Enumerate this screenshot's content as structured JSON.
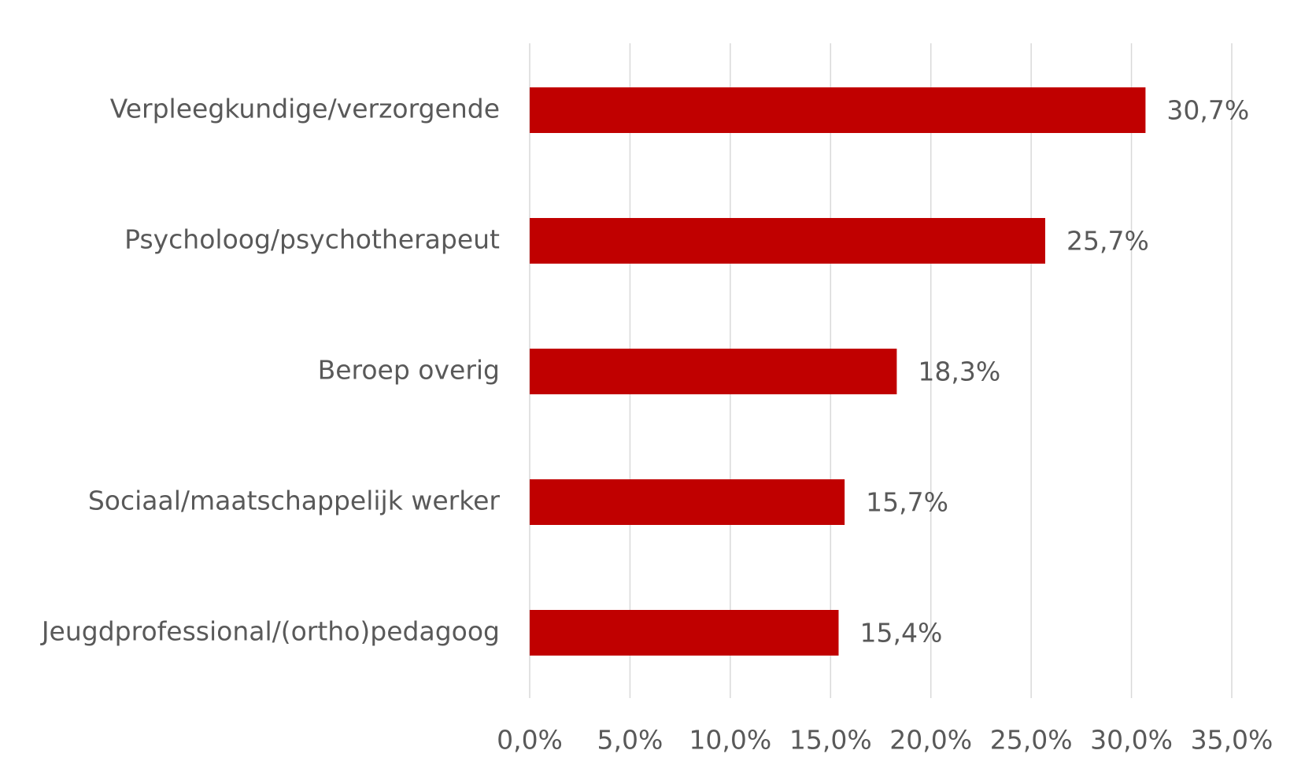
{
  "chart_data": {
    "type": "barh",
    "categories": [
      "Verpleegkundige/verzorgende",
      "Psycholoog/psychotherapeut",
      "Beroep overig",
      "Sociaal/maatschappelijk werker",
      "Jeugdprofessional/(ortho)pedagoog"
    ],
    "values": [
      30.7,
      25.7,
      18.3,
      15.7,
      15.4
    ],
    "value_labels": [
      "30,7%",
      "25,7%",
      "18,3%",
      "15,7%",
      "15,4%"
    ],
    "color": "#c00000",
    "xlim": [
      0,
      35
    ],
    "xticks": [
      {
        "value": 0,
        "label": "0,0%"
      },
      {
        "value": 5,
        "label": "5,0%"
      },
      {
        "value": 10,
        "label": "10,0%"
      },
      {
        "value": 15,
        "label": "15,0%"
      },
      {
        "value": 20,
        "label": "20,0%"
      },
      {
        "value": 25,
        "label": "25,0%"
      },
      {
        "value": 30,
        "label": "30,0%"
      },
      {
        "value": 35,
        "label": "35,0%"
      }
    ],
    "grid": true
  }
}
